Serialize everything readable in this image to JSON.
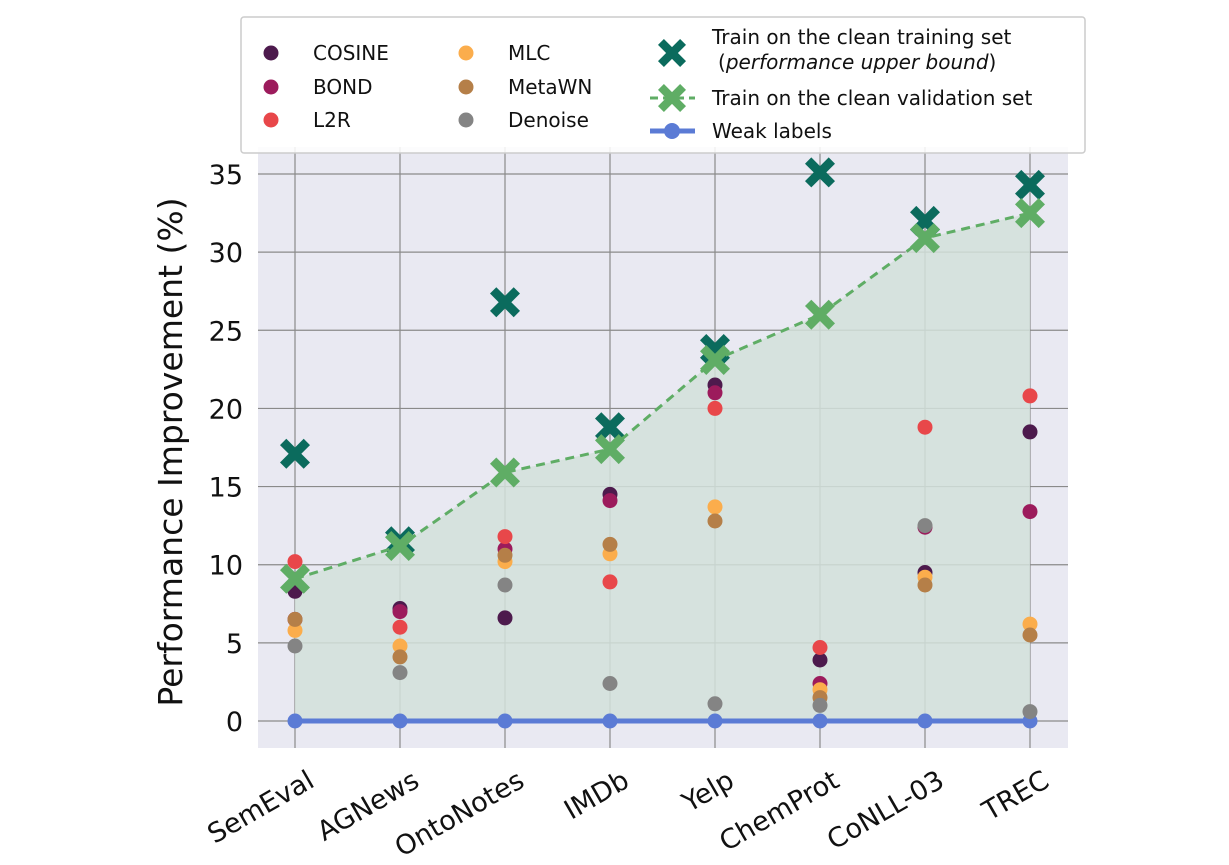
{
  "chart_data": {
    "type": "scatter",
    "title": "",
    "xlabel": "",
    "ylabel": "Performance Improvement (%)",
    "ylim": [
      -1.8,
      36.5
    ],
    "yticks": [
      0,
      5,
      10,
      15,
      20,
      25,
      30,
      35
    ],
    "grid": true,
    "legend_position": "top",
    "categories": [
      "SemEval",
      "AGNews",
      "OntoNotes",
      "IMDb",
      "Yelp",
      "ChemProt",
      "CoNLL-03",
      "TREC"
    ],
    "series": [
      {
        "name": "COSINE",
        "kind": "dot",
        "color": "#4d1a4d",
        "values": [
          8.3,
          7.2,
          6.6,
          14.5,
          21.5,
          3.9,
          9.5,
          18.5
        ]
      },
      {
        "name": "BOND",
        "kind": "dot",
        "color": "#9c1b5c",
        "values": [
          6.5,
          7.0,
          11.0,
          14.1,
          21.0,
          2.4,
          12.4,
          13.4
        ]
      },
      {
        "name": "L2R",
        "kind": "dot",
        "color": "#e8474a",
        "values": [
          10.2,
          6.0,
          11.8,
          8.9,
          20.0,
          4.7,
          18.8,
          20.8
        ]
      },
      {
        "name": "MLC",
        "kind": "dot",
        "color": "#fbad4c",
        "values": [
          5.8,
          4.8,
          10.2,
          10.7,
          13.7,
          2.0,
          9.2,
          6.2
        ]
      },
      {
        "name": "MetaWN",
        "kind": "dot",
        "color": "#b57f48",
        "values": [
          6.5,
          4.1,
          10.6,
          11.3,
          12.8,
          1.5,
          8.7,
          5.5
        ]
      },
      {
        "name": "Denoise",
        "kind": "dot",
        "color": "#848484",
        "values": [
          4.8,
          3.1,
          8.7,
          2.4,
          1.1,
          1.0,
          12.5,
          0.6
        ]
      },
      {
        "name": "Train on the clean training set",
        "name_suffix": "(performance upper bound)",
        "kind": "x",
        "color": "#0b6b5d",
        "values": [
          17.1,
          11.5,
          26.8,
          18.8,
          23.8,
          35.1,
          32.0,
          34.3
        ]
      },
      {
        "name": "Train on the clean validation set",
        "kind": "x-dashed-line",
        "color": "#5fad65",
        "values": [
          9.1,
          11.2,
          15.9,
          17.4,
          23.1,
          26.0,
          30.9,
          32.5
        ]
      },
      {
        "name": "Weak labels",
        "kind": "line-dot",
        "color": "#5b7bd5",
        "values": [
          0,
          0,
          0,
          0,
          0,
          0,
          0,
          0
        ]
      }
    ],
    "legend": {
      "col1": [
        "COSINE",
        "BOND",
        "L2R"
      ],
      "col2": [
        "MLC",
        "MetaWN",
        "Denoise"
      ],
      "upper_line1": "Train on the clean training set",
      "upper_line2_open": "(",
      "upper_line2_italic": "performance upper bound",
      "upper_line2_close": ")",
      "validation": "Train on the clean validation set",
      "weak": "Weak labels"
    },
    "colors": {
      "plot_bg": "#e9e9f2",
      "grid": "#8a8a8a",
      "fill": "#d2e0da"
    }
  }
}
